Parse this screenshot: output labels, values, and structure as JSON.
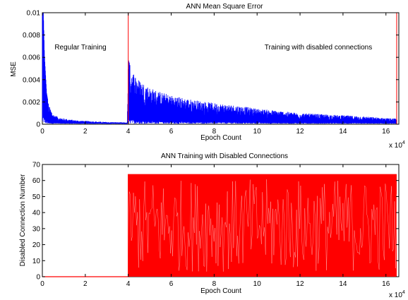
{
  "chart_data": [
    {
      "type": "line",
      "title": "ANN Mean Square Error",
      "xlabel": "Epoch Count",
      "ylabel": "MSE",
      "x_multiplier_text": "x 10",
      "x_multiplier_exp": "4",
      "xlim": [
        0,
        16.6
      ],
      "ylim": [
        0,
        0.01
      ],
      "xticks": [
        0,
        2,
        4,
        6,
        8,
        10,
        12,
        14,
        16
      ],
      "xtick_labels": [
        "0",
        "2",
        "4",
        "6",
        "8",
        "10",
        "12",
        "14",
        "16"
      ],
      "yticks": [
        0,
        0.002,
        0.004,
        0.006,
        0.008,
        0.01
      ],
      "ytick_labels": [
        "0",
        "0.002",
        "0.004",
        "0.006",
        "0.008",
        "0.01"
      ],
      "grid": false,
      "series": [
        {
          "color": "#0000ff",
          "envelope_x": [
            0,
            0.05,
            0.1,
            0.2,
            0.3,
            0.5,
            0.8,
            1.2,
            1.6,
            2.0,
            2.5,
            3.0,
            3.5,
            3.95,
            4.0,
            4.05,
            4.2,
            4.5,
            5.0,
            5.5,
            6.0,
            7.0,
            8.0,
            9.0,
            10.0,
            11.0,
            12.0,
            13.0,
            14.0,
            15.0,
            16.0,
            16.5
          ],
          "envelope_y": [
            0.01,
            0.01,
            0.0062,
            0.0028,
            0.0017,
            0.0009,
            0.0006,
            0.00045,
            0.00035,
            0.0003,
            0.00025,
            0.0002,
            0.00018,
            0.00015,
            0.0058,
            0.0055,
            0.0048,
            0.004,
            0.0033,
            0.0029,
            0.0026,
            0.0022,
            0.0019,
            0.0017,
            0.0014,
            0.0012,
            0.001,
            0.0009,
            0.0008,
            0.0007,
            0.00055,
            0.0005
          ],
          "base_y": 5e-05
        }
      ],
      "vlines": [
        {
          "x": 4.0,
          "color": "#ff0000"
        },
        {
          "x": 16.5,
          "color": "#ff0000"
        }
      ],
      "annotations": [
        {
          "text": "Regular Training",
          "x": 2.0,
          "y": 0.0066
        },
        {
          "text": "Training with disabled connections",
          "x": 12.3,
          "y": 0.0066
        }
      ]
    },
    {
      "type": "line",
      "title": "ANN Training with Disabled Connections",
      "xlabel": "Epoch Count",
      "ylabel": "Disabled Connection Number",
      "x_multiplier_text": "x 10",
      "x_multiplier_exp": "4",
      "xlim": [
        0,
        16.6
      ],
      "ylim": [
        0,
        70
      ],
      "xticks": [
        0,
        2,
        4,
        6,
        8,
        10,
        12,
        14,
        16
      ],
      "xtick_labels": [
        "0",
        "2",
        "4",
        "6",
        "8",
        "10",
        "12",
        "14",
        "16"
      ],
      "yticks": [
        0,
        10,
        20,
        30,
        40,
        50,
        60,
        70
      ],
      "ytick_labels": [
        "0",
        "10",
        "20",
        "30",
        "40",
        "50",
        "60",
        "70"
      ],
      "grid": false,
      "series": [
        {
          "color": "#ff0000",
          "flat_until": 4.0,
          "flat_value": 0,
          "oscillation_start": 4.0,
          "oscillation_end": 16.5,
          "oscillation_min": 0,
          "oscillation_max": 64
        }
      ]
    }
  ]
}
